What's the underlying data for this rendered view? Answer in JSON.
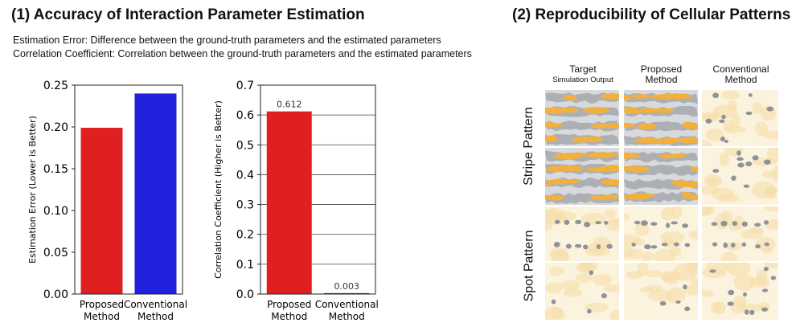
{
  "section1": {
    "title": "(1) Accuracy of Interaction Parameter Estimation",
    "desc_line1": "Estimation Error: Difference between the ground-truth parameters and the estimated parameters",
    "desc_line2": "Correlation Coefficient: Correlation between the ground-truth parameters and the estimated parameters"
  },
  "section2": {
    "title": "(2) Reproducibility of Cellular Patterns",
    "columns": [
      {
        "line1": "Target",
        "line2": "Simulation Output"
      },
      {
        "line1": "Proposed",
        "line2": "Method"
      },
      {
        "line1": "Conventional",
        "line2": "Method"
      }
    ],
    "rows": [
      "Stripe Pattern",
      "Spot Pattern"
    ],
    "colors": {
      "background": "#fbf3de",
      "orange": "#f4b03c",
      "gray": "#a4a8ad"
    }
  },
  "chart_data": [
    {
      "type": "bar",
      "categories": [
        "Proposed Method",
        "Conventional Method"
      ],
      "category_lines": [
        [
          "Proposed",
          "Method"
        ],
        [
          "Conventional",
          "Method"
        ]
      ],
      "values": [
        0.199,
        0.24
      ],
      "colors": [
        "#e02020",
        "#2020dd"
      ],
      "ylabel": "Estimation Error (Lower is Better)",
      "ylim": [
        0,
        0.25
      ],
      "yticks": [
        "0.00",
        "0.05",
        "0.10",
        "0.15",
        "0.20",
        "0.25"
      ],
      "data_labels": [],
      "grid": false
    },
    {
      "type": "bar",
      "categories": [
        "Proposed Method",
        "Conventional Method"
      ],
      "category_lines": [
        [
          "Proposed",
          "Method"
        ],
        [
          "Conventional",
          "Method"
        ]
      ],
      "values": [
        0.612,
        0.003
      ],
      "colors": [
        "#e02020",
        "#2020dd"
      ],
      "ylabel": "Correlation Coefficient (Higher is Better)",
      "ylim": [
        0,
        0.7
      ],
      "yticks": [
        "0.0",
        "0.1",
        "0.2",
        "0.3",
        "0.4",
        "0.5",
        "0.6",
        "0.7"
      ],
      "data_labels": [
        "0.612",
        "0.003"
      ],
      "grid": true
    }
  ]
}
